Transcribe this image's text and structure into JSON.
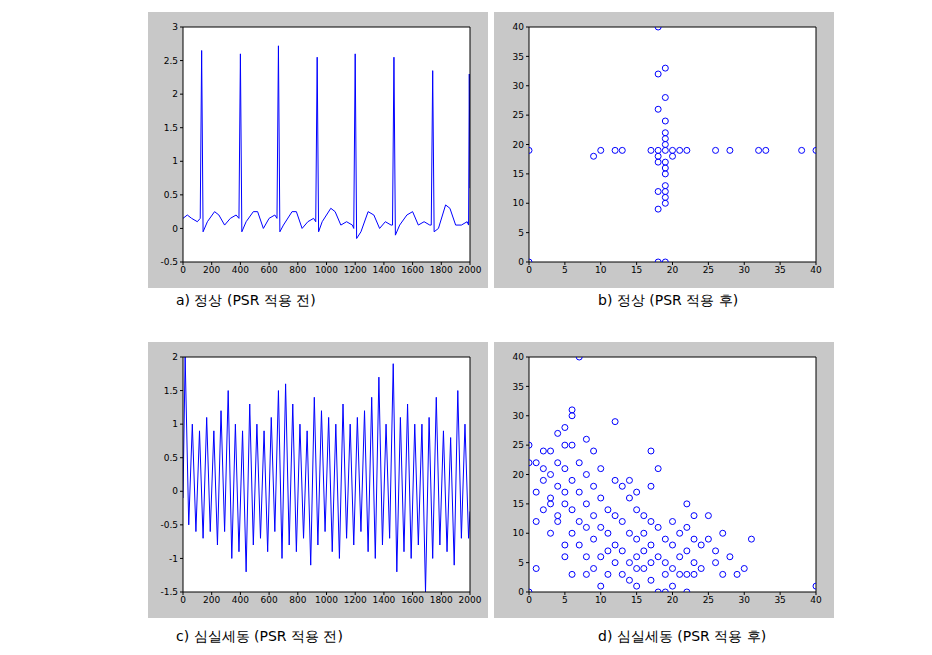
{
  "chart_data": [
    {
      "type": "line",
      "title": "a) 정상 (PSR 적용 전)",
      "color": "#0000ff",
      "grid": false,
      "xlim": [
        0,
        2000
      ],
      "ylim": [
        -0.5,
        3
      ],
      "xticks": [
        0,
        200,
        400,
        600,
        800,
        1000,
        1200,
        1400,
        1600,
        1800,
        2000
      ],
      "yticks": [
        -0.5,
        0,
        0.5,
        1,
        1.5,
        2,
        2.5,
        3
      ],
      "x": [
        0,
        30,
        60,
        100,
        120,
        130,
        140,
        170,
        220,
        250,
        290,
        330,
        370,
        390,
        400,
        410,
        440,
        490,
        520,
        560,
        600,
        640,
        655,
        665,
        675,
        700,
        760,
        790,
        830,
        870,
        910,
        925,
        935,
        945,
        970,
        1030,
        1060,
        1100,
        1140,
        1180,
        1190,
        1200,
        1210,
        1240,
        1290,
        1330,
        1370,
        1410,
        1450,
        1460,
        1470,
        1480,
        1510,
        1560,
        1600,
        1640,
        1680,
        1720,
        1730,
        1740,
        1750,
        1780,
        1830,
        1860,
        1900,
        1940,
        1980,
        1990,
        1995,
        2000
      ],
      "values": [
        0.15,
        0.2,
        0.15,
        0.1,
        0.15,
        2.65,
        -0.05,
        0.1,
        0.25,
        0.2,
        0.05,
        0.15,
        0.2,
        0.15,
        2.6,
        -0.05,
        0.1,
        0.25,
        0.25,
        0.0,
        0.15,
        0.2,
        0.15,
        2.72,
        -0.05,
        0.05,
        0.25,
        0.25,
        0.0,
        0.1,
        0.15,
        0.1,
        2.55,
        -0.05,
        0.1,
        0.3,
        0.25,
        0.05,
        0.1,
        0.05,
        0.0,
        2.6,
        -0.15,
        -0.05,
        0.25,
        0.2,
        0.0,
        0.1,
        0.05,
        0.05,
        2.55,
        -0.1,
        0.05,
        0.2,
        0.25,
        0.05,
        0.1,
        0.05,
        0.05,
        2.35,
        -0.05,
        0.0,
        0.35,
        0.3,
        0.05,
        0.05,
        0.1,
        0.05,
        2.3,
        0.6
      ]
    },
    {
      "type": "scatter",
      "title": "b) 정상 (PSR 적용 후)",
      "color": "#0000ff",
      "marker": "circle",
      "grid": false,
      "xlim": [
        0,
        40
      ],
      "ylim": [
        0,
        40
      ],
      "xticks": [
        0,
        5,
        10,
        15,
        20,
        25,
        30,
        35,
        40
      ],
      "yticks": [
        0,
        5,
        10,
        15,
        20,
        25,
        30,
        35,
        40
      ],
      "x": [
        0,
        9,
        10,
        12,
        13,
        17,
        18,
        19,
        20,
        21,
        22,
        26,
        28,
        32,
        33,
        38,
        40,
        18,
        18,
        19,
        19,
        18,
        19,
        19,
        19,
        19,
        18,
        19,
        20,
        18,
        19,
        19,
        19,
        19,
        18,
        19,
        19,
        18,
        18,
        19,
        0
      ],
      "values": [
        19,
        18,
        19,
        19,
        19,
        19,
        19,
        19,
        19,
        19,
        19,
        19,
        19,
        19,
        19,
        19,
        19,
        40,
        32,
        33,
        28,
        26,
        24,
        22,
        21,
        20,
        18,
        17,
        18,
        17,
        16,
        15,
        13,
        12,
        12,
        11,
        10,
        9,
        0,
        0,
        0
      ]
    },
    {
      "type": "line",
      "title": "c) 심실세동 (PSR 적용 전)",
      "color": "#0000ff",
      "grid": false,
      "xlim": [
        0,
        2000
      ],
      "ylim": [
        -1.5,
        2
      ],
      "xticks": [
        0,
        200,
        400,
        600,
        800,
        1000,
        1200,
        1400,
        1600,
        1800,
        2000
      ],
      "yticks": [
        -1.5,
        -1,
        -0.5,
        0,
        0.5,
        1,
        1.5,
        2
      ],
      "x": [
        0,
        15,
        40,
        65,
        90,
        115,
        140,
        165,
        190,
        215,
        240,
        265,
        290,
        315,
        340,
        365,
        390,
        415,
        440,
        465,
        490,
        515,
        540,
        565,
        590,
        615,
        640,
        665,
        690,
        715,
        740,
        765,
        790,
        815,
        840,
        865,
        890,
        915,
        940,
        965,
        990,
        1015,
        1040,
        1065,
        1090,
        1115,
        1140,
        1165,
        1190,
        1215,
        1240,
        1265,
        1290,
        1315,
        1340,
        1365,
        1390,
        1415,
        1440,
        1465,
        1490,
        1515,
        1540,
        1565,
        1590,
        1615,
        1640,
        1665,
        1690,
        1715,
        1740,
        1765,
        1790,
        1815,
        1840,
        1865,
        1890,
        1915,
        1940,
        1965,
        1990,
        2000
      ],
      "values": [
        -0.1,
        2.0,
        -0.5,
        1.0,
        -0.6,
        0.9,
        -0.7,
        1.1,
        -0.6,
        0.9,
        -0.8,
        1.2,
        -0.6,
        1.5,
        -1.0,
        1.0,
        -0.9,
        0.9,
        -1.2,
        1.3,
        -0.8,
        1.0,
        -0.7,
        0.9,
        -0.9,
        1.1,
        -0.6,
        1.5,
        -1.0,
        1.6,
        -0.8,
        1.3,
        -0.9,
        1.0,
        -0.7,
        0.9,
        -1.1,
        1.4,
        -0.8,
        1.2,
        -0.6,
        1.1,
        -0.9,
        1.0,
        -1.0,
        1.3,
        -0.7,
        1.0,
        -0.8,
        1.1,
        -0.6,
        1.2,
        -0.9,
        1.4,
        -1.0,
        1.7,
        -0.8,
        1.0,
        -0.7,
        1.9,
        -1.2,
        1.1,
        -0.9,
        1.3,
        -1.0,
        1.0,
        -0.8,
        1.0,
        -1.5,
        1.1,
        -1.0,
        1.4,
        -0.8,
        0.9,
        -0.9,
        0.8,
        -1.1,
        1.5,
        -0.7,
        1.0,
        -0.7,
        -0.3
      ]
    },
    {
      "type": "scatter",
      "title": "d) 심실세동 (PSR 적용 후)",
      "color": "#0000ff",
      "marker": "circle",
      "grid": false,
      "xlim": [
        0,
        40
      ],
      "ylim": [
        0,
        40
      ],
      "xticks": [
        0,
        5,
        10,
        15,
        20,
        25,
        30,
        35,
        40
      ],
      "yticks": [
        0,
        5,
        10,
        15,
        20,
        25,
        30,
        35,
        40
      ],
      "x": [
        0,
        0,
        0,
        1,
        1,
        2,
        2,
        1,
        1,
        2,
        2,
        3,
        3,
        3,
        3,
        3,
        4,
        4,
        4,
        4,
        4,
        5,
        5,
        5,
        5,
        5,
        5,
        5,
        6,
        6,
        6,
        6,
        6,
        6,
        6,
        7,
        7,
        7,
        7,
        7,
        8,
        8,
        8,
        8,
        8,
        8,
        9,
        9,
        9,
        9,
        9,
        10,
        10,
        10,
        10,
        10,
        11,
        11,
        11,
        11,
        12,
        12,
        12,
        12,
        12,
        13,
        13,
        13,
        13,
        14,
        14,
        14,
        14,
        14,
        15,
        15,
        15,
        15,
        15,
        15,
        16,
        16,
        16,
        16,
        17,
        17,
        17,
        17,
        17,
        17,
        18,
        18,
        18,
        18,
        19,
        19,
        19,
        19,
        20,
        20,
        20,
        20,
        21,
        21,
        21,
        22,
        22,
        22,
        22,
        22,
        23,
        23,
        23,
        23,
        24,
        24,
        25,
        25,
        26,
        26,
        27,
        27,
        28,
        29,
        30,
        31,
        40
      ],
      "values": [
        0,
        25,
        22,
        22,
        17,
        21,
        24,
        12,
        4,
        14,
        19,
        10,
        15,
        20,
        24,
        16,
        13,
        18,
        22,
        27,
        12,
        15,
        28,
        25,
        21,
        17,
        8,
        6,
        31,
        30,
        25,
        19,
        14,
        10,
        3,
        40,
        22,
        17,
        12,
        8,
        26,
        20,
        15,
        11,
        6,
        3,
        24,
        18,
        13,
        9,
        4,
        21,
        16,
        11,
        6,
        1,
        14,
        10,
        7,
        3,
        29,
        19,
        13,
        8,
        5,
        18,
        12,
        7,
        3,
        19,
        16,
        10,
        5,
        2,
        17,
        14,
        9,
        6,
        4,
        1,
        13,
        10,
        7,
        4,
        24,
        18,
        12,
        8,
        5,
        2,
        21,
        11,
        6,
        0,
        9,
        5,
        3,
        0,
        12,
        8,
        4,
        1,
        10,
        6,
        3,
        15,
        11,
        7,
        3,
        0,
        13,
        9,
        5,
        3,
        8,
        4,
        13,
        9,
        7,
        5,
        10,
        3,
        6,
        3,
        4,
        9,
        1
      ]
    }
  ]
}
